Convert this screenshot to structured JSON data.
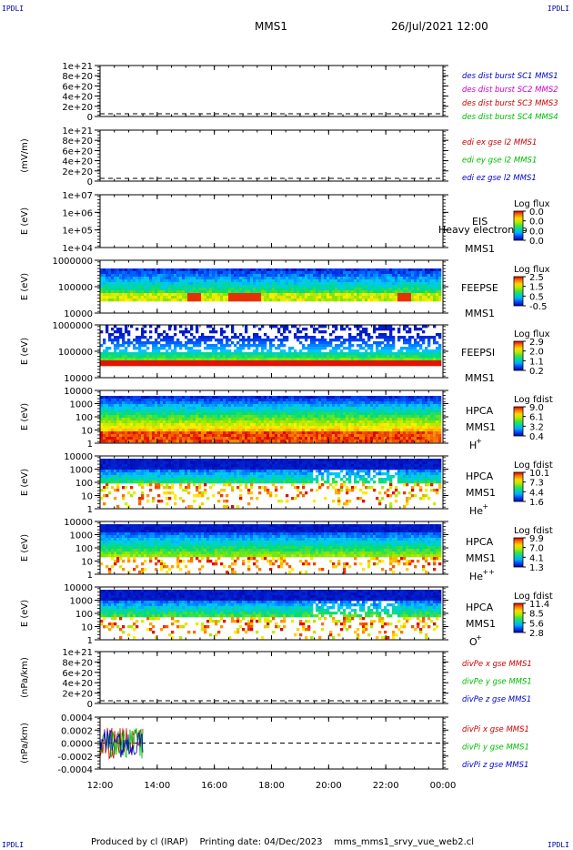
{
  "corners": {
    "tl": "IPDLI",
    "tr": "IPDLI",
    "bl": "IPDLI",
    "br": "IPDLI"
  },
  "header": {
    "spacecraft": "MMS1",
    "datetime": "26/Jul/2021 12:00"
  },
  "footer": {
    "text": "Produced by cl (IRAP)    Printing date: 04/Dec/2023    mms_mms1_srvy_vue_web2.cl"
  },
  "colors": {
    "red": "#cc0000",
    "green": "#00bb00",
    "blue": "#0000cc",
    "magenta": "#cc00cc"
  },
  "chart_data": [
    {
      "id": "p1",
      "type": "line",
      "yticks": [
        "1e+21",
        "8e+20",
        "6e+20",
        "4e+20",
        "2e+20",
        "0"
      ],
      "ylabel": "",
      "legend": [
        {
          "text": "des dist burst SC1 MMS1",
          "color": "#0000cc"
        },
        {
          "text": "des dist burst SC2 MMS2",
          "color": "#cc00cc"
        },
        {
          "text": "des dist burst SC3 MMS3",
          "color": "#cc0000"
        },
        {
          "text": "des dist burst SC4 MMS4",
          "color": "#00bb00"
        }
      ],
      "zero_line": true
    },
    {
      "id": "p2",
      "type": "line",
      "yticks": [
        "1e+21",
        "8e+20",
        "6e+20",
        "4e+20",
        "2e+20",
        "0"
      ],
      "ylabel": "(mV/m)",
      "legend": [
        {
          "text": "edi ex gse l2 MMS1",
          "color": "#cc0000"
        },
        {
          "text": "edi ey gse l2 MMS1",
          "color": "#00bb00"
        },
        {
          "text": "edi ez gse l2 MMS1",
          "color": "#0000cc"
        }
      ],
      "zero_line": true
    },
    {
      "id": "p3",
      "type": "heatmap",
      "yticks": [
        "1e+07",
        "1e+06",
        "1e+05",
        "1e+04"
      ],
      "ylabel": "E (eV)",
      "labels": [
        "EIS",
        "MMS1"
      ],
      "overlay": "Heavy electron to",
      "cbar_title": "Log flux",
      "cbar_ticks": [
        "0.0",
        "0.0",
        "0.0",
        "0.0"
      ],
      "fill": "none"
    },
    {
      "id": "p4",
      "type": "heatmap",
      "yticks": [
        "1000000",
        "100000",
        "10000"
      ],
      "ylabel": "E (eV)",
      "labels": [
        "FEEPSE",
        "MMS1"
      ],
      "cbar_title": "Log flux",
      "cbar_ticks": [
        "2.5",
        "1.5",
        "0.5",
        "-0.5"
      ],
      "fill": "feepse"
    },
    {
      "id": "p5",
      "type": "heatmap",
      "yticks": [
        "1000000",
        "100000",
        "10000"
      ],
      "ylabel": "E (eV)",
      "labels": [
        "FEEPSI",
        "MMS1"
      ],
      "cbar_title": "Log flux",
      "cbar_ticks": [
        "2.9",
        "2.0",
        "1.1",
        "0.2"
      ],
      "fill": "feepsi"
    },
    {
      "id": "p6",
      "type": "heatmap",
      "yticks": [
        "10000",
        "1000",
        "100",
        "10",
        "1"
      ],
      "ylabel": "E (eV)",
      "labels": [
        "HPCA",
        "MMS1"
      ],
      "species": "H",
      "species_sup": "+",
      "cbar_title": "Log fdist",
      "cbar_ticks": [
        "9.0",
        "6.1",
        "3.2",
        "0.4"
      ],
      "fill": "hplus"
    },
    {
      "id": "p7",
      "type": "heatmap",
      "yticks": [
        "10000",
        "1000",
        "100",
        "10",
        "1"
      ],
      "ylabel": "E (eV)",
      "labels": [
        "HPCA",
        "MMS1"
      ],
      "species": "He",
      "species_sup": "+",
      "cbar_title": "Log fdist",
      "cbar_ticks": [
        "10.1",
        "7.3",
        "4.4",
        "1.6"
      ],
      "fill": "heplus"
    },
    {
      "id": "p8",
      "type": "heatmap",
      "yticks": [
        "10000",
        "1000",
        "100",
        "10",
        "1"
      ],
      "ylabel": "E (eV)",
      "labels": [
        "HPCA",
        "MMS1"
      ],
      "species": "He",
      "species_sup": "++",
      "cbar_title": "Log fdist",
      "cbar_ticks": [
        "9.9",
        "7.0",
        "4.1",
        "1.3"
      ],
      "fill": "heplusplus"
    },
    {
      "id": "p9",
      "type": "heatmap",
      "yticks": [
        "10000",
        "1000",
        "100",
        "10",
        "1"
      ],
      "ylabel": "E (eV)",
      "labels": [
        "HPCA",
        "MMS1"
      ],
      "species": "O",
      "species_sup": "+",
      "cbar_title": "Log fdist",
      "cbar_ticks": [
        "11.4",
        "8.5",
        "5.6",
        "2.8"
      ],
      "fill": "oplus"
    },
    {
      "id": "p10",
      "type": "line",
      "yticks": [
        "1e+21",
        "8e+20",
        "6e+20",
        "4e+20",
        "2e+20",
        "0"
      ],
      "ylabel": "(nPa/km)",
      "legend": [
        {
          "text": "divPe x gse MMS1",
          "color": "#cc0000"
        },
        {
          "text": "divPe y gse MMS1",
          "color": "#00bb00"
        },
        {
          "text": "divPe z gse MMS1",
          "color": "#0000cc"
        }
      ],
      "zero_line": true
    },
    {
      "id": "p11",
      "type": "line",
      "yticks": [
        "0.0004",
        "0.0002",
        "0.0000",
        "-0.0002",
        "-0.0004"
      ],
      "ylabel": "(nPa/km)",
      "ylim": [
        -0.0004,
        0.0004
      ],
      "legend": [
        {
          "text": "divPi x gse MMS1",
          "color": "#cc0000"
        },
        {
          "text": "divPi y gse MMS1",
          "color": "#00bb00"
        },
        {
          "text": "divPi z gse MMS1",
          "color": "#0000cc"
        }
      ],
      "zero_line": true,
      "data_until_hours": 1.5
    }
  ],
  "xaxis": {
    "ticks": [
      "12:00",
      "14:00",
      "16:00",
      "18:00",
      "20:00",
      "22:00",
      "00:00"
    ]
  }
}
